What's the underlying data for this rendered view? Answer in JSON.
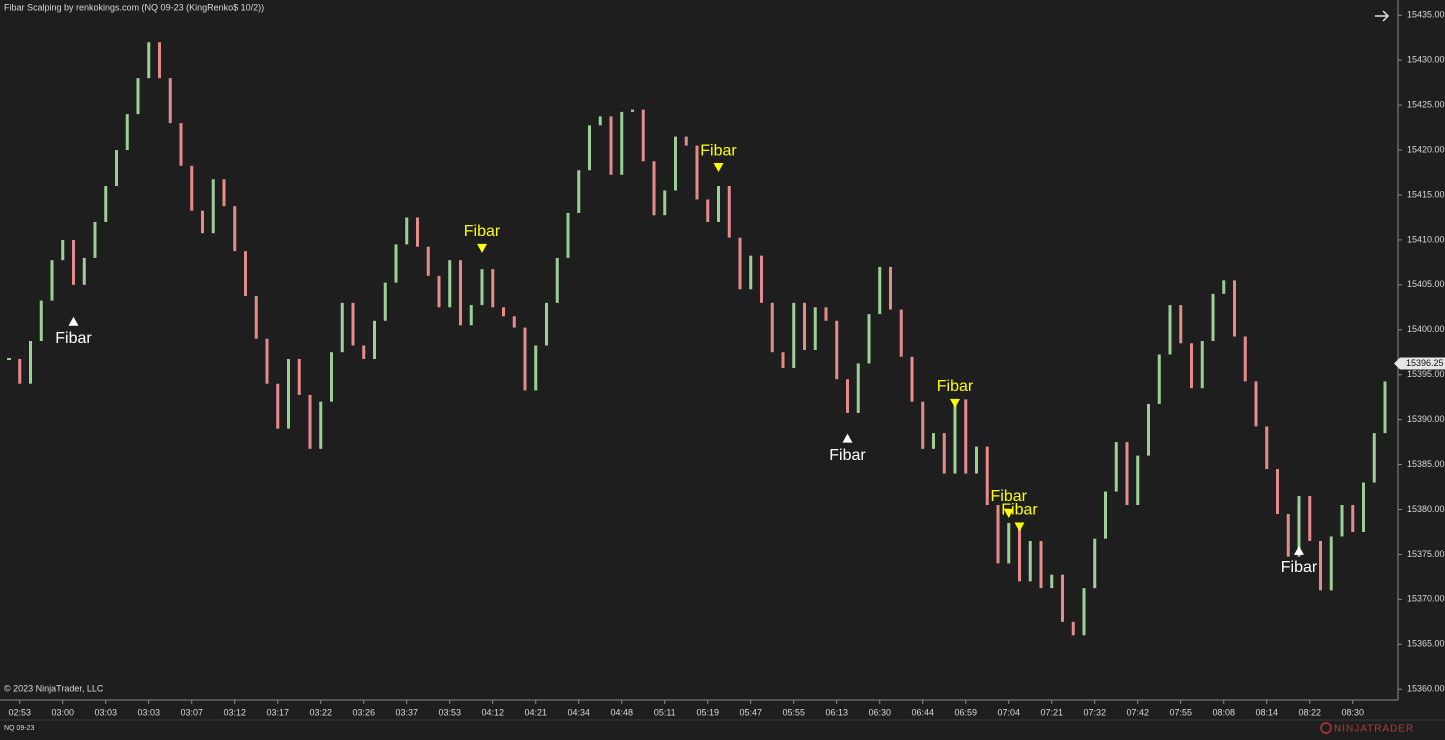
{
  "chart_data": {
    "type": "renko",
    "title": "Fibar Scalping by renkokings.com (NQ 09-23 (KingRenko$ 10/2))",
    "copyright": "© 2023 NinjaTrader, LLC",
    "instrument": "NQ 09-23",
    "brand": "NINJATRADER",
    "up_color": "#9ccf96",
    "down_color": "#e58b8b",
    "categories": [
      null,
      "02:53",
      null,
      null,
      null,
      "03:00",
      null,
      null,
      null,
      "03:03",
      null,
      null,
      null,
      "03:03",
      null,
      null,
      null,
      "03:07",
      null,
      null,
      null,
      "03:12",
      null,
      null,
      null,
      "03:17",
      null,
      null,
      null,
      "03:22",
      null,
      null,
      null,
      "03:26",
      null,
      null,
      null,
      "03:37",
      null,
      null,
      null,
      "03:53",
      null,
      null,
      null,
      "04:12",
      null,
      null,
      null,
      "04:21",
      null,
      null,
      null,
      "04:34",
      null,
      null,
      null,
      "04:48",
      null,
      null,
      null,
      "05:11",
      null,
      null,
      null,
      "05:19",
      null,
      null,
      null,
      "05:47",
      null,
      null,
      null,
      "05:55",
      null,
      null,
      null,
      "06:13",
      null,
      null,
      null,
      "06:30",
      null,
      null,
      null,
      "06:44",
      null,
      null,
      null,
      "06:59",
      null,
      null,
      null,
      "07:04",
      null,
      null,
      null,
      "07:21",
      null,
      null,
      null,
      "07:32",
      null,
      null,
      null,
      "07:42",
      null,
      null,
      null,
      "07:55",
      null,
      null,
      null,
      "08:08",
      null,
      null,
      null,
      "08:14",
      null,
      null,
      null,
      "08:22",
      null,
      null,
      null,
      "08:30",
      null,
      null,
      null
    ],
    "values": [
      15396.75,
      15394,
      15398.75,
      15403.25,
      15407.75,
      15410,
      15405,
      15408,
      15412,
      15416,
      15420,
      15424,
      15428,
      15432,
      15428,
      15423,
      15418.25,
      15413.25,
      15410.75,
      15416.75,
      15413.75,
      15408.75,
      15403.75,
      15399,
      15394,
      15389,
      15396.75,
      15392.75,
      15386.75,
      15392,
      15397.5,
      15403,
      15398.25,
      15396.75,
      15401,
      15405.25,
      15409.5,
      15412.5,
      15409.25,
      15406,
      15402.5,
      15407.75,
      15400.5,
      15402.75,
      15406.75,
      15402.5,
      15401.5,
      15400.25,
      15393.25,
      15398.25,
      15403,
      15408,
      15413,
      15417.75,
      15422.75,
      15423.75,
      15417.25,
      15424.25,
      15424.5,
      15418.75,
      15412.75,
      15415.5,
      15421.5,
      15420.5,
      15414.5,
      15412,
      15416,
      15410.25,
      15404.5,
      15408.25,
      15403,
      15397.5,
      15395.75,
      15403,
      15397.75,
      15402.5,
      15401,
      15394.5,
      15390.75,
      15396.25,
      15401.75,
      15407,
      15402.25,
      15397,
      15392,
      15386.75,
      15388.5,
      15384,
      15392.25,
      15384,
      15387,
      15380.5,
      15374,
      15378.5,
      15372,
      15376.5,
      15371.25,
      15372.75,
      15367.5,
      15366,
      15371.25,
      15376.75,
      15382,
      15387.5,
      15380.5,
      15386,
      15391.75,
      15397.25,
      15402.75,
      15398.5,
      15393.5,
      15398.75,
      15404,
      15405.5,
      15399.25,
      15394.25,
      15389.25,
      15384.5,
      15379.5,
      15374.75,
      15381.5,
      15376.5,
      15371,
      15377,
      15380.5,
      15377.5,
      15383,
      15388.5,
      15394.25
    ],
    "ylim": [
      15358.8,
      15436.7
    ],
    "yticks": [
      {
        "value": 15360,
        "label": "15360.00"
      },
      {
        "value": 15365,
        "label": "15365.00"
      },
      {
        "value": 15370,
        "label": "15370.00"
      },
      {
        "value": 15375,
        "label": "15375.00"
      },
      {
        "value": 15380,
        "label": "15380.00"
      },
      {
        "value": 15385,
        "label": "15385.00"
      },
      {
        "value": 15390,
        "label": "15390.00"
      },
      {
        "value": 15395,
        "label": "15395.00"
      },
      {
        "value": 15400,
        "label": "15400.00"
      },
      {
        "value": 15405,
        "label": "15405.00"
      },
      {
        "value": 15410,
        "label": "15410.00"
      },
      {
        "value": 15415,
        "label": "15415.00"
      },
      {
        "value": 15420,
        "label": "15420.00"
      },
      {
        "value": 15425,
        "label": "15425.00"
      },
      {
        "value": 15430,
        "label": "15430.00"
      },
      {
        "value": 15435,
        "label": "15435.00"
      }
    ],
    "last_price": {
      "value": 15396.25,
      "label": "15396.25"
    },
    "annotations": [
      {
        "text": "Fibar",
        "index": 6,
        "price": 15401,
        "direction": "up",
        "color": "#ffffff"
      },
      {
        "text": "Fibar",
        "index": 44,
        "price": 15409,
        "direction": "down",
        "color": "#ffff00"
      },
      {
        "text": "Fibar",
        "index": 66,
        "price": 15418,
        "direction": "down",
        "color": "#ffff00"
      },
      {
        "text": "Fibar",
        "index": 78,
        "price": 15388,
        "direction": "up",
        "color": "#ffffff"
      },
      {
        "text": "Fibar",
        "index": 88,
        "price": 15391.75,
        "direction": "down",
        "color": "#ffff00"
      },
      {
        "text": "Fibar",
        "index": 93,
        "price": 15379.5,
        "direction": "down",
        "color": "#ffff00"
      },
      {
        "text": "Fibar",
        "index": 94,
        "price": 15378,
        "direction": "down",
        "color": "#ffff00"
      },
      {
        "text": "Fibar",
        "index": 120,
        "price": 15375.5,
        "direction": "up",
        "color": "#ffffff"
      }
    ]
  }
}
